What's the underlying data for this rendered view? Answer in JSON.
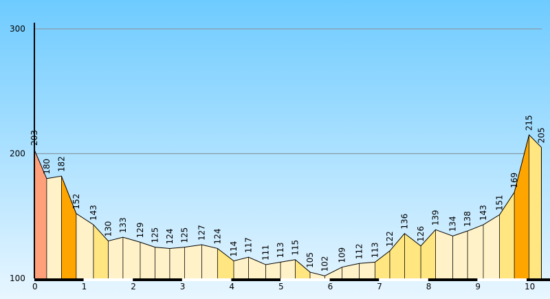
{
  "chart_data": {
    "type": "area",
    "title": "",
    "xlabel": "",
    "ylabel": "",
    "xlim": [
      0,
      10.3
    ],
    "ylim": [
      100,
      300
    ],
    "y_ticks": [
      100,
      200,
      300
    ],
    "x_ticks": [
      0,
      1,
      2,
      3,
      4,
      5,
      6,
      7,
      8,
      9,
      10
    ],
    "grid": true,
    "points": [
      {
        "x": 0.0,
        "y": 203
      },
      {
        "x": 0.25,
        "y": 180
      },
      {
        "x": 0.55,
        "y": 182
      },
      {
        "x": 0.85,
        "y": 152
      },
      {
        "x": 1.2,
        "y": 143
      },
      {
        "x": 1.5,
        "y": 130
      },
      {
        "x": 1.8,
        "y": 133
      },
      {
        "x": 2.15,
        "y": 129
      },
      {
        "x": 2.45,
        "y": 125
      },
      {
        "x": 2.75,
        "y": 124
      },
      {
        "x": 3.05,
        "y": 125
      },
      {
        "x": 3.4,
        "y": 127
      },
      {
        "x": 3.72,
        "y": 124
      },
      {
        "x": 4.05,
        "y": 114
      },
      {
        "x": 4.35,
        "y": 117
      },
      {
        "x": 4.7,
        "y": 111
      },
      {
        "x": 5.0,
        "y": 113
      },
      {
        "x": 5.3,
        "y": 115
      },
      {
        "x": 5.6,
        "y": 105
      },
      {
        "x": 5.9,
        "y": 102
      },
      {
        "x": 6.25,
        "y": 109
      },
      {
        "x": 6.6,
        "y": 112
      },
      {
        "x": 6.92,
        "y": 113
      },
      {
        "x": 7.22,
        "y": 122
      },
      {
        "x": 7.52,
        "y": 136
      },
      {
        "x": 7.85,
        "y": 126
      },
      {
        "x": 8.15,
        "y": 139
      },
      {
        "x": 8.5,
        "y": 134
      },
      {
        "x": 8.8,
        "y": 138
      },
      {
        "x": 9.12,
        "y": 143
      },
      {
        "x": 9.45,
        "y": 151
      },
      {
        "x": 9.75,
        "y": 169
      },
      {
        "x": 10.05,
        "y": 215
      },
      {
        "x": 10.3,
        "y": 205
      }
    ]
  },
  "colors": {
    "sky_top": "#6ECBFF",
    "sky_bottom": "#E8F6FF",
    "grid": "#8A9BA8",
    "steep_up": "#FFFF00",
    "steep_down": "#FFA07A",
    "moderate": "#FFE680",
    "gentle": "#FFF2C8",
    "very_steep": "#FFA500"
  }
}
